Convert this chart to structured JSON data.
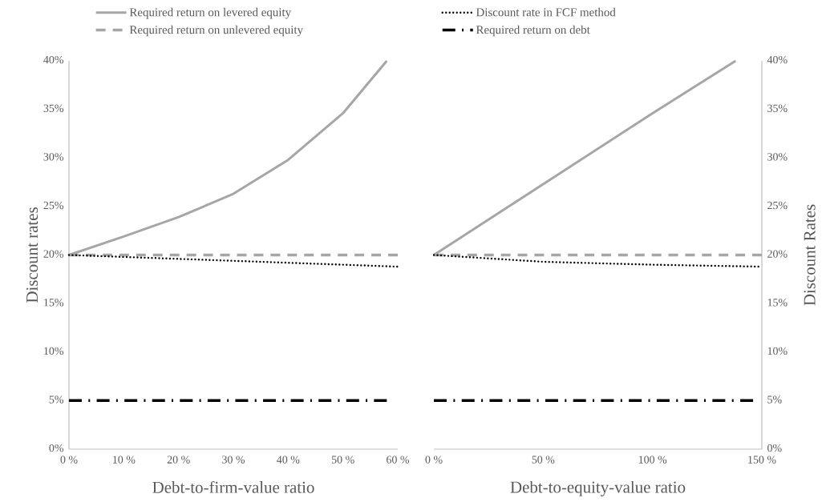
{
  "chart_data": [
    {
      "type": "line",
      "xlabel": "Debt-to-firm-value ratio",
      "ylabel": "Discount rates",
      "legend": "top",
      "xlim": [
        0,
        60
      ],
      "xticks": [
        {
          "value": 0,
          "label": "0 %"
        },
        {
          "value": 10,
          "label": "10 %"
        },
        {
          "value": 20,
          "label": "20 %"
        },
        {
          "value": 30,
          "label": "30 %"
        },
        {
          "value": 40,
          "label": "40 %"
        },
        {
          "value": 50,
          "label": "50 %"
        },
        {
          "value": 60,
          "label": "60 %"
        }
      ],
      "ylim": [
        0,
        40
      ],
      "yticks": [
        {
          "value": 0,
          "label": "0%"
        },
        {
          "value": 5,
          "label": "5%"
        },
        {
          "value": 10,
          "label": "10%"
        },
        {
          "value": 15,
          "label": "15%"
        },
        {
          "value": 20,
          "label": "20%"
        },
        {
          "value": 25,
          "label": "25%"
        },
        {
          "value": 30,
          "label": "30%"
        },
        {
          "value": 35,
          "label": "35%"
        },
        {
          "value": 40,
          "label": "40%"
        }
      ],
      "series": [
        {
          "name": "Required return on levered equity",
          "color": "#a6a6a6",
          "line_style": "solid",
          "x": [
            0,
            10,
            20,
            30,
            40,
            50,
            58
          ],
          "values": [
            20,
            21.9,
            23.9,
            26.3,
            29.8,
            34.6,
            40
          ]
        },
        {
          "name": "Required return on unlevered equity",
          "color": "#a6a6a6",
          "line_style": "dashed",
          "x": [
            0,
            60
          ],
          "values": [
            20,
            20
          ]
        },
        {
          "name": "Discount rate in FCF method",
          "color": "#000000",
          "line_style": "dotted",
          "x": [
            0,
            20,
            40,
            60
          ],
          "values": [
            20,
            19.6,
            19.2,
            18.8
          ]
        },
        {
          "name": "Required return on debt",
          "color": "#000000",
          "line_style": "dashdot",
          "x": [
            0,
            58
          ],
          "values": [
            5,
            5
          ]
        }
      ]
    },
    {
      "type": "line",
      "xlabel": "Debt-to-equity-value ratio",
      "ylabel": "Discount Rates",
      "xlim": [
        0,
        150
      ],
      "xticks": [
        {
          "value": 0,
          "label": "0 %"
        },
        {
          "value": 50,
          "label": "50 %"
        },
        {
          "value": 100,
          "label": "100 %"
        },
        {
          "value": 150,
          "label": "150 %"
        }
      ],
      "ylim": [
        0,
        40
      ],
      "yticks": [
        {
          "value": 0,
          "label": "0%"
        },
        {
          "value": 5,
          "label": "5%"
        },
        {
          "value": 10,
          "label": "10%"
        },
        {
          "value": 15,
          "label": "15%"
        },
        {
          "value": 20,
          "label": "20%"
        },
        {
          "value": 25,
          "label": "25%"
        },
        {
          "value": 30,
          "label": "30%"
        },
        {
          "value": 35,
          "label": "35%"
        },
        {
          "value": 40,
          "label": "40%"
        }
      ],
      "series": [
        {
          "color": "#a6a6a6",
          "line_style": "solid",
          "x": [
            0,
            50,
            100,
            138
          ],
          "values": [
            20,
            27.3,
            34.6,
            40
          ]
        },
        {
          "color": "#a6a6a6",
          "line_style": "dashed",
          "x": [
            0,
            150
          ],
          "values": [
            20,
            20
          ]
        },
        {
          "color": "#000000",
          "line_style": "dotted",
          "x": [
            0,
            50,
            100,
            150
          ],
          "values": [
            20,
            19.3,
            19.0,
            18.8
          ]
        },
        {
          "color": "#000000",
          "line_style": "dashdot",
          "x": [
            0,
            146
          ],
          "values": [
            5,
            5
          ]
        }
      ]
    }
  ]
}
